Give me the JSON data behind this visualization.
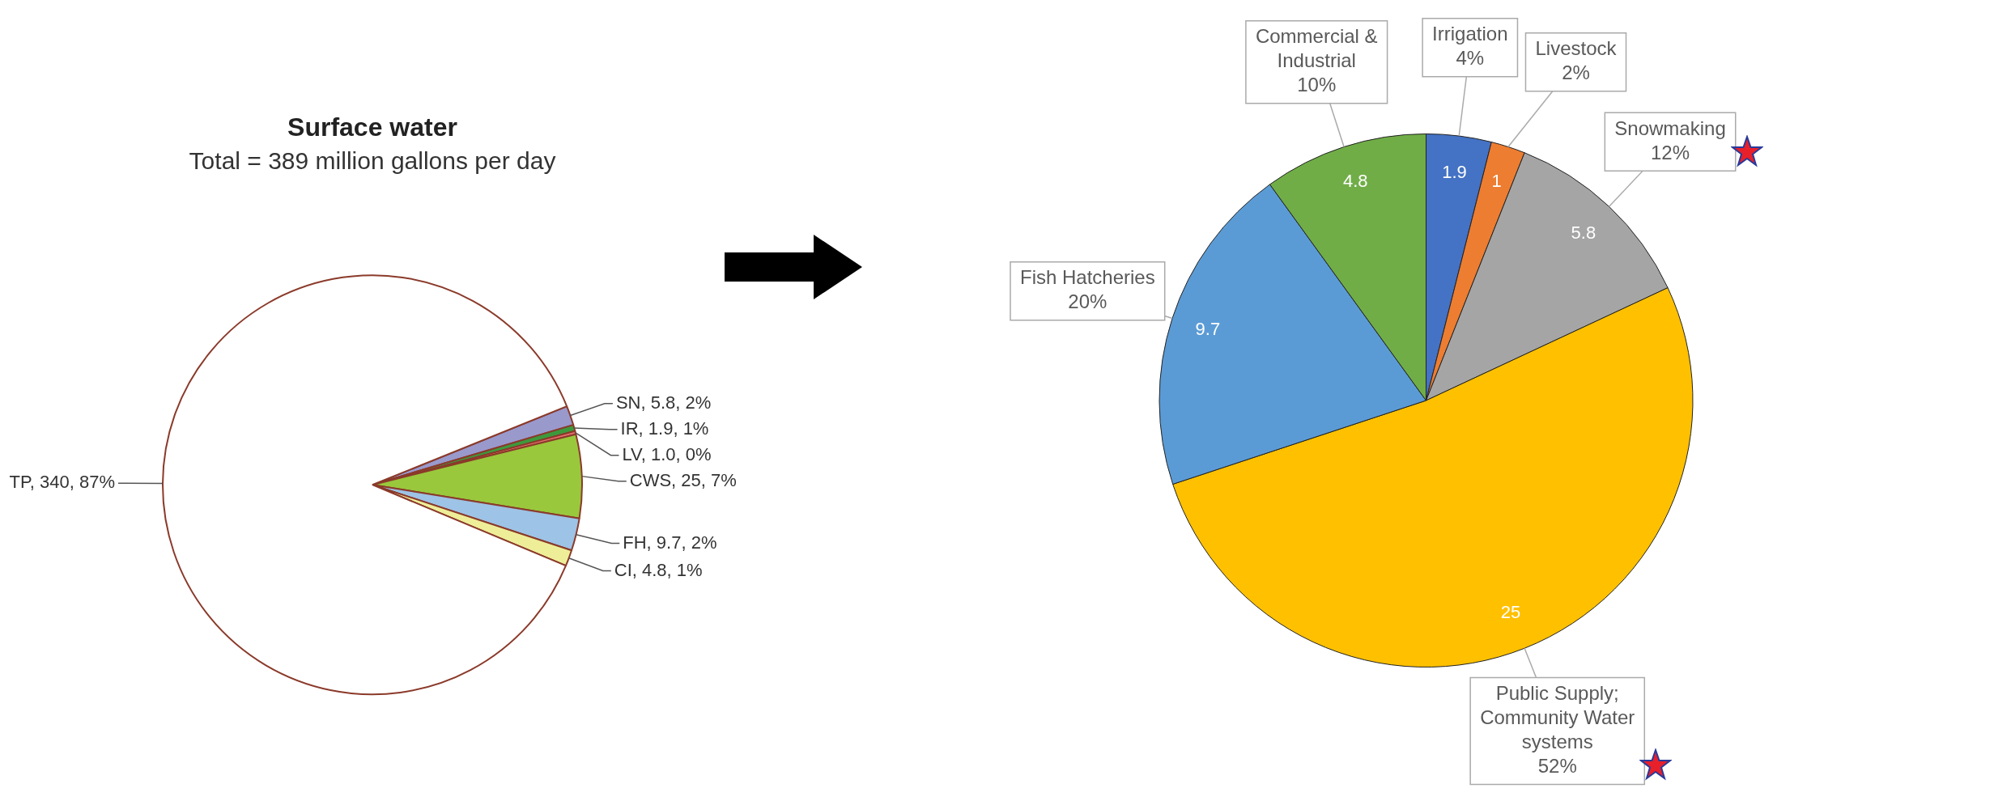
{
  "chart_data": [
    {
      "type": "pie",
      "title": "Surface water",
      "subtitle": "Total = 389 million gallons per day",
      "categories": [
        "SN",
        "IR",
        "LV",
        "CWS",
        "FH",
        "CI",
        "TP"
      ],
      "values": [
        5.8,
        1.9,
        1.0,
        25,
        9.7,
        4.8,
        340
      ],
      "value_labels": [
        "5.8, 2%",
        "1.9, 1%",
        "1.0, 0%",
        "25, 7%",
        "9.7, 2%",
        "4.8, 1%",
        "340, 87%"
      ],
      "colors": [
        "#9999cc",
        "#3c9a3c",
        "#e87070",
        "#99c83c",
        "#9dc3e6",
        "#eeee99",
        "#ffffff"
      ]
    },
    {
      "type": "pie",
      "categories": [
        "Irrigation",
        "Livestock",
        "Snowmaking",
        "Public Supply; Community Water systems",
        "Fish Hatcheries",
        "Commercial & Industrial"
      ],
      "values": [
        1.9,
        1,
        5.8,
        25,
        9.7,
        4.8
      ],
      "annotations": [
        "4%",
        "2%",
        "12%",
        "52%",
        "20%",
        "10%"
      ],
      "data_labels": true,
      "colors": [
        "#4472c4",
        "#ed7d31",
        "#a5a5a5",
        "#ffc000",
        "#5b9bd5",
        "#70ad47"
      ]
    }
  ]
}
